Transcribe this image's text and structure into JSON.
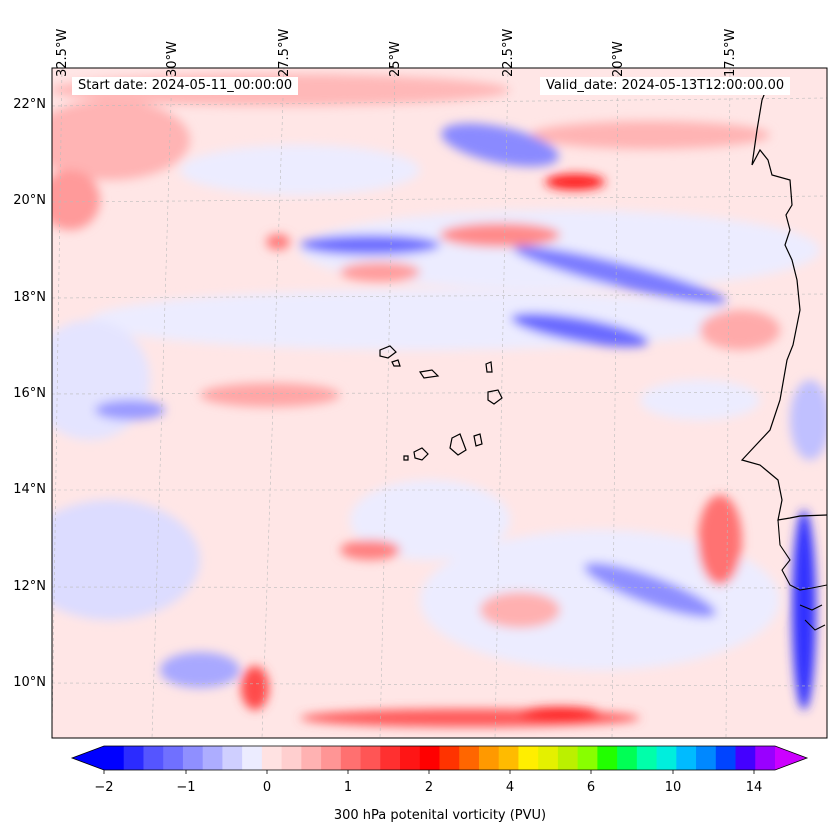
{
  "map": {
    "lon_labels": [
      "32.5°W",
      "30°W",
      "27.5°W",
      "25°W",
      "22.5°W",
      "20°W",
      "17.5°W"
    ],
    "lat_labels": [
      "22°N",
      "20°N",
      "18°N",
      "16°N",
      "14°N",
      "12°N",
      "10°N"
    ],
    "start_date": "Start date: 2024-05-11_00:00:00",
    "valid_date": "Valid_date: 2024-05-13T12:00:00.00"
  },
  "colorbar": {
    "ticks": [
      "−2",
      "−1",
      "0",
      "1",
      "2",
      "4",
      "6",
      "10",
      "14"
    ],
    "label": "300 hPa potenital vorticity (PVU)",
    "colors": [
      "#0000ff",
      "#2b2bff",
      "#5555ff",
      "#7070ff",
      "#8f8fff",
      "#adadff",
      "#cfcfff",
      "#ececff",
      "#ffe2e2",
      "#ffcfcf",
      "#ffb2b2",
      "#ff9595",
      "#ff7070",
      "#ff5555",
      "#ff3030",
      "#ff1515",
      "#ff0000",
      "#ff3300",
      "#ff6600",
      "#ff9900",
      "#ffbb00",
      "#ffee00",
      "#e4f000",
      "#bbf000",
      "#88ff00",
      "#22ff00",
      "#00ff55",
      "#00ffaa",
      "#00eedd",
      "#00bbff",
      "#0088ff",
      "#0044ff",
      "#4400ff",
      "#9900ff"
    ],
    "extend_min_color": "#0000ff",
    "extend_max_color": "#cc00ff"
  },
  "colors": {
    "background": "#eeeeff",
    "coast": "#000000"
  }
}
